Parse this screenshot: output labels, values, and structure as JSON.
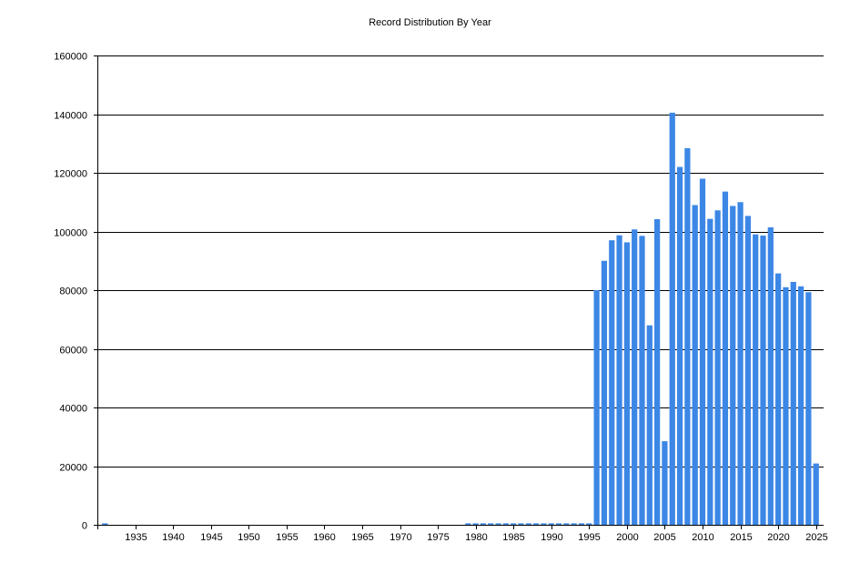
{
  "chart_data": {
    "type": "bar",
    "title": "Record Distribution By Year",
    "xlabel": "",
    "ylabel": "",
    "ylim": [
      0,
      160000
    ],
    "xlim": [
      1930,
      2026
    ],
    "yticks": [
      0,
      20000,
      40000,
      60000,
      80000,
      100000,
      120000,
      140000,
      160000
    ],
    "xticks": [
      1935,
      1940,
      1945,
      1950,
      1955,
      1960,
      1965,
      1970,
      1975,
      1980,
      1985,
      1990,
      1995,
      2000,
      2005,
      2010,
      2015,
      2020,
      2025
    ],
    "grid": "horizontal",
    "bar_color": "#3c87e6",
    "x": [
      1931,
      1979,
      1980,
      1981,
      1982,
      1983,
      1984,
      1985,
      1986,
      1987,
      1988,
      1989,
      1990,
      1991,
      1992,
      1993,
      1994,
      1995,
      1996,
      1997,
      1998,
      1999,
      2000,
      2001,
      2002,
      2003,
      2004,
      2005,
      2006,
      2007,
      2008,
      2009,
      2010,
      2011,
      2012,
      2013,
      2014,
      2015,
      2016,
      2017,
      2018,
      2019,
      2020,
      2021,
      2022,
      2023,
      2024,
      2025
    ],
    "values": [
      500,
      500,
      500,
      500,
      500,
      500,
      500,
      500,
      500,
      500,
      500,
      500,
      500,
      500,
      500,
      500,
      500,
      500,
      80000,
      90000,
      97000,
      98700,
      96300,
      100700,
      98500,
      68000,
      104200,
      28500,
      140500,
      122000,
      128400,
      109000,
      118000,
      104300,
      107200,
      113600,
      108700,
      110000,
      105300,
      99000,
      98600,
      101400,
      85700,
      81000,
      82800,
      81300,
      79300,
      20900
    ]
  }
}
